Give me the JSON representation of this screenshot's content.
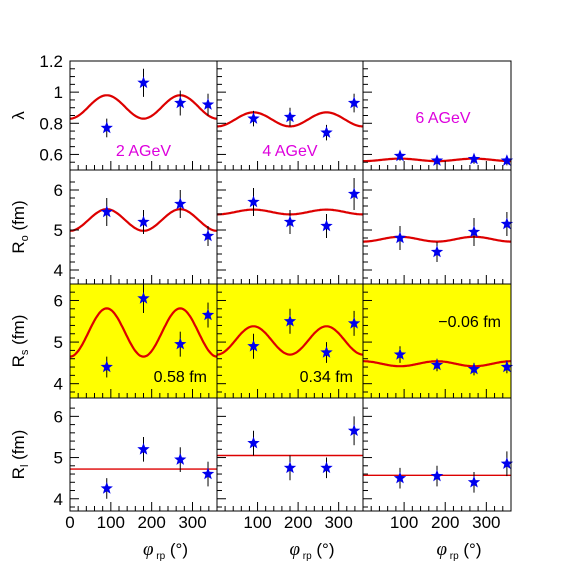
{
  "chart_data": {
    "type": "scatter",
    "x_range": [
      0,
      360
    ],
    "x_ticks": [
      0,
      100,
      200,
      300
    ],
    "x_ticklabels": [
      "0",
      "100",
      "200",
      "300"
    ],
    "x_label": "φ",
    "x_label_sub": "rp",
    "x_label_unit": "(°)",
    "columns": [
      "2 AGeV",
      "4 AGeV",
      "6 AGeV"
    ],
    "rows": [
      {
        "key": "lambda",
        "ylabel": "λ",
        "ylabel_sub": "",
        "ylabel_unit": "",
        "ylim": [
          0.5,
          1.2
        ],
        "yticks": [
          0.6,
          0.8,
          1.0,
          1.2
        ],
        "yticklabels": [
          "0.6",
          "0.8",
          "1",
          "1.2"
        ],
        "highlight": false,
        "panels": [
          {
            "points": [
              [
                90,
                0.77,
                0.06
              ],
              [
                180,
                1.06,
                0.09
              ],
              [
                270,
                0.93,
                0.08
              ],
              [
                338,
                0.92,
                0.07
              ]
            ],
            "fit": {
              "type": "cos2",
              "c": 0.905,
              "a": -0.075
            },
            "note": "2 AGeV",
            "note_color": "#dd00dd"
          },
          {
            "points": [
              [
                90,
                0.83,
                0.05
              ],
              [
                180,
                0.84,
                0.06
              ],
              [
                270,
                0.74,
                0.05
              ],
              [
                338,
                0.93,
                0.06
              ]
            ],
            "fit": {
              "type": "cos2",
              "c": 0.825,
              "a": -0.045
            },
            "note": "4 AGeV",
            "note_color": "#dd00dd"
          },
          {
            "points": [
              [
                90,
                0.59,
                0.03
              ],
              [
                180,
                0.56,
                0.03
              ],
              [
                270,
                0.57,
                0.03
              ],
              [
                350,
                0.56,
                0.03
              ]
            ],
            "fit": {
              "type": "cos2",
              "c": 0.565,
              "a": -0.008
            },
            "note": "6 AGeV",
            "note_color": "#dd00dd"
          }
        ]
      },
      {
        "key": "Ro",
        "ylabel": "R",
        "ylabel_sub": "o",
        "ylabel_unit": "(fm)",
        "ylim": [
          3.8,
          6.3
        ],
        "yticks": [
          4,
          5,
          6
        ],
        "yticklabels": [
          "4",
          "5",
          "6"
        ],
        "highlight": false,
        "panels": [
          {
            "points": [
              [
                90,
                5.45,
                0.35
              ],
              [
                180,
                5.2,
                0.3
              ],
              [
                270,
                5.65,
                0.35
              ],
              [
                338,
                4.85,
                0.25
              ]
            ],
            "fit": {
              "type": "cos2",
              "c": 5.25,
              "a": -0.27
            },
            "note": "",
            "note_color": "#000000"
          },
          {
            "points": [
              [
                90,
                5.7,
                0.35
              ],
              [
                180,
                5.2,
                0.3
              ],
              [
                270,
                5.1,
                0.3
              ],
              [
                338,
                5.9,
                0.4
              ]
            ],
            "fit": {
              "type": "cos2",
              "c": 5.45,
              "a": -0.06
            },
            "note": "",
            "note_color": "#000000"
          },
          {
            "points": [
              [
                90,
                4.8,
                0.3
              ],
              [
                180,
                4.45,
                0.25
              ],
              [
                270,
                4.95,
                0.35
              ],
              [
                350,
                5.15,
                0.3
              ]
            ],
            "fit": {
              "type": "cos2",
              "c": 4.77,
              "a": -0.06
            },
            "note": "",
            "note_color": "#000000"
          }
        ]
      },
      {
        "key": "Rs",
        "ylabel": "R",
        "ylabel_sub": "s",
        "ylabel_unit": "(fm)",
        "ylim": [
          3.8,
          6.3
        ],
        "yticks": [
          4,
          5,
          6
        ],
        "yticklabels": [
          "4",
          "5",
          "6"
        ],
        "highlight": true,
        "panels": [
          {
            "points": [
              [
                90,
                4.4,
                0.25
              ],
              [
                180,
                6.05,
                0.35
              ],
              [
                270,
                4.95,
                0.3
              ],
              [
                338,
                5.65,
                0.3
              ]
            ],
            "fit": {
              "type": "cos2",
              "c": 5.23,
              "a": -0.58
            },
            "note": "0.58 fm",
            "note_color": "#000000"
          },
          {
            "points": [
              [
                90,
                4.9,
                0.3
              ],
              [
                180,
                5.5,
                0.3
              ],
              [
                270,
                4.75,
                0.25
              ],
              [
                338,
                5.45,
                0.3
              ]
            ],
            "fit": {
              "type": "cos2",
              "c": 5.04,
              "a": -0.34
            },
            "note": "0.34 fm",
            "note_color": "#000000"
          },
          {
            "points": [
              [
                90,
                4.7,
                0.2
              ],
              [
                180,
                4.45,
                0.15
              ],
              [
                270,
                4.35,
                0.15
              ],
              [
                350,
                4.4,
                0.15
              ]
            ],
            "fit": {
              "type": "cos2",
              "c": 4.48,
              "a": 0.06
            },
            "note": "−0.06 fm",
            "note_color": "#000000"
          }
        ]
      },
      {
        "key": "Rl",
        "ylabel": "R",
        "ylabel_sub": "l",
        "ylabel_unit": "(fm)",
        "ylim": [
          3.8,
          6.3
        ],
        "yticks": [
          4,
          5,
          6
        ],
        "yticklabels": [
          "4",
          "5",
          "6"
        ],
        "highlight": false,
        "panels": [
          {
            "points": [
              [
                90,
                4.25,
                0.25
              ],
              [
                180,
                5.2,
                0.3
              ],
              [
                270,
                4.95,
                0.3
              ],
              [
                338,
                4.6,
                0.3
              ]
            ],
            "fit": {
              "type": "const",
              "c": 4.72
            },
            "note": "",
            "note_color": "#000000"
          },
          {
            "points": [
              [
                90,
                5.35,
                0.3
              ],
              [
                180,
                4.75,
                0.3
              ],
              [
                270,
                4.75,
                0.25
              ],
              [
                338,
                5.65,
                0.35
              ]
            ],
            "fit": {
              "type": "const",
              "c": 5.05
            },
            "note": "",
            "note_color": "#000000"
          },
          {
            "points": [
              [
                90,
                4.5,
                0.25
              ],
              [
                180,
                4.55,
                0.25
              ],
              [
                270,
                4.4,
                0.25
              ],
              [
                350,
                4.85,
                0.3
              ]
            ],
            "fit": {
              "type": "const",
              "c": 4.57
            },
            "note": "",
            "note_color": "#000000"
          }
        ]
      }
    ]
  },
  "colors": {
    "marker": "#0000ee",
    "fit": "#dd0000",
    "highlight": "#ffff00",
    "errorbar": "#000000"
  }
}
